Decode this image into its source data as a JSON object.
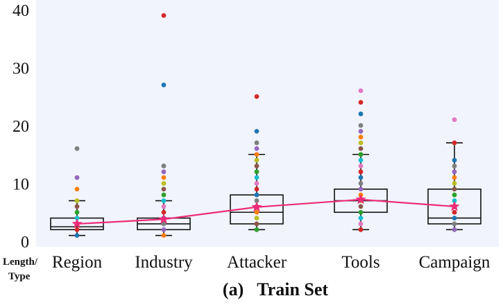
{
  "chart_data": {
    "type": "box",
    "caption": "(a)   Train Set",
    "corner_label": [
      "Length/",
      "Type"
    ],
    "categories": [
      "Region",
      "Industry",
      "Attacker",
      "Tools",
      "Campaign"
    ],
    "ylim": [
      0,
      40
    ],
    "yticks": [
      0,
      10,
      20,
      30,
      40
    ],
    "grid": false,
    "boxes": [
      {
        "category": "Region",
        "whisker_low": 1,
        "q1": 2,
        "median": 2.5,
        "q3": 4,
        "whisker_high": 7
      },
      {
        "category": "Industry",
        "whisker_low": 1,
        "q1": 2,
        "median": 3,
        "q3": 4,
        "whisker_high": 7
      },
      {
        "category": "Attacker",
        "whisker_low": 2,
        "q1": 3,
        "median": 5,
        "q3": 8,
        "whisker_high": 15
      },
      {
        "category": "Tools",
        "whisker_low": 2,
        "q1": 5,
        "median": 7,
        "q3": 9,
        "whisker_high": 15
      },
      {
        "category": "Campaign",
        "whisker_low": 2,
        "q1": 3,
        "median": 4,
        "q3": 9,
        "whisker_high": 17
      }
    ],
    "mean_line": {
      "values": [
        3.0,
        3.8,
        5.9,
        7.2,
        6.0
      ],
      "color": "#ec2c78"
    },
    "points": [
      [
        1,
        2,
        3,
        4,
        5,
        6,
        7,
        9,
        11,
        16
      ],
      [
        1,
        2,
        3,
        4,
        5,
        6,
        7,
        8,
        9,
        10,
        11,
        12,
        13,
        27,
        39
      ],
      [
        2,
        3,
        4,
        5,
        6,
        7,
        8,
        9,
        10,
        11,
        12,
        13,
        14,
        15,
        16,
        17,
        19,
        25
      ],
      [
        2,
        3,
        4,
        5,
        6,
        7,
        8,
        9,
        10,
        11,
        12,
        13,
        14,
        15,
        16,
        17,
        18,
        19,
        20,
        22,
        24,
        26
      ],
      [
        2,
        3,
        4,
        5,
        6,
        7,
        8,
        9,
        10,
        11,
        12,
        13,
        14,
        17,
        21
      ]
    ],
    "colors": {
      "background": "#f1f4fc",
      "box": "#111111",
      "dot_palette": [
        "#1f77b4",
        "#ff7f0e",
        "#2ca02c",
        "#d62728",
        "#9467bd",
        "#8c564b",
        "#e377c2",
        "#7f7f7f",
        "#bcbd22",
        "#17becf"
      ]
    }
  }
}
